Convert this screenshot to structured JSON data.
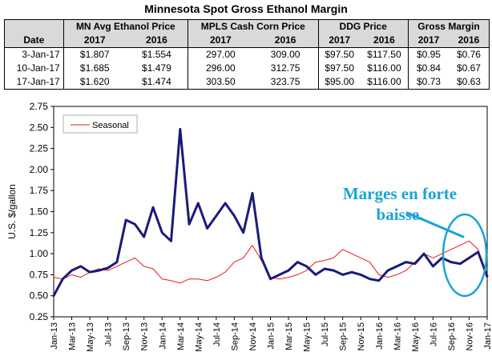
{
  "title": "Minnesota Spot Gross Ethanol Margin",
  "table": {
    "date_header": "Date",
    "groups": [
      {
        "label": "MN Avg Ethanol Price",
        "col2017": "2017",
        "col2016": "2016"
      },
      {
        "label": "MPLS Cash Corn Price",
        "col2017": "2017",
        "col2016": "2016"
      },
      {
        "label": "DDG Price",
        "col2017": "2017",
        "col2016": "2016"
      },
      {
        "label": "Gross Margin",
        "col2017": "2017",
        "col2016": "2016"
      }
    ],
    "rows": [
      {
        "date": "3-Jan-17",
        "values": [
          "$1.807",
          "$1.554",
          "297.00",
          "309.00",
          "$97.50",
          "$117.50",
          "$0.95",
          "$0.76"
        ]
      },
      {
        "date": "10-Jan-17",
        "values": [
          "$1.685",
          "$1.479",
          "296.00",
          "312.75",
          "$97.50",
          "$116.00",
          "$0.84",
          "$0.67"
        ]
      },
      {
        "date": "17-Jan-17",
        "values": [
          "$1.620",
          "$1.474",
          "303.50",
          "323.75",
          "$95.00",
          "$116.00",
          "$0.73",
          "$0.63"
        ]
      }
    ]
  },
  "annotation": {
    "line1": "Marges en forte",
    "line2": "baisse.",
    "color": "#1aa3d6"
  },
  "chart_data": {
    "type": "line",
    "ylabel": "U.S. $/gallon",
    "xlabel": "",
    "ylim": [
      0.25,
      2.75
    ],
    "yticks": [
      "0.25",
      "0.50",
      "0.75",
      "1.00",
      "1.25",
      "1.50",
      "1.75",
      "2.00",
      "2.25",
      "2.50",
      "2.75"
    ],
    "grid": false,
    "legend_position": "top-left",
    "x_tick_labels": [
      "Jan-13",
      "Mar-13",
      "May-13",
      "Jul-13",
      "Sep-13",
      "Nov-13",
      "Jan-14",
      "Mar-14",
      "May-14",
      "Jul-14",
      "Sep-14",
      "Nov-14",
      "Jan-15",
      "Mar-15",
      "May-15",
      "Jul-15",
      "Sep-15",
      "Nov-15",
      "Jan-16",
      "Mar-16",
      "May-16",
      "Jul-16",
      "Sep-16",
      "Nov-16",
      "Jan-17"
    ],
    "series": [
      {
        "name": "",
        "color": "#1a1a7a",
        "x": [
          "2013-01",
          "2013-02",
          "2013-03",
          "2013-04",
          "2013-05",
          "2013-06",
          "2013-07",
          "2013-08",
          "2013-09",
          "2013-10",
          "2013-11",
          "2013-12",
          "2014-01",
          "2014-02",
          "2014-03",
          "2014-04",
          "2014-05",
          "2014-06",
          "2014-07",
          "2014-08",
          "2014-09",
          "2014-10",
          "2014-11",
          "2014-12",
          "2015-01",
          "2015-02",
          "2015-03",
          "2015-04",
          "2015-05",
          "2015-06",
          "2015-07",
          "2015-08",
          "2015-09",
          "2015-10",
          "2015-11",
          "2015-12",
          "2016-01",
          "2016-02",
          "2016-03",
          "2016-04",
          "2016-05",
          "2016-06",
          "2016-07",
          "2016-08",
          "2016-09",
          "2016-10",
          "2016-11",
          "2016-12",
          "2017-01"
        ],
        "values": [
          0.5,
          0.7,
          0.8,
          0.85,
          0.78,
          0.8,
          0.83,
          0.9,
          1.4,
          1.35,
          1.2,
          1.55,
          1.25,
          1.15,
          2.48,
          1.35,
          1.6,
          1.3,
          1.45,
          1.6,
          1.45,
          1.25,
          1.72,
          0.95,
          0.7,
          0.75,
          0.8,
          0.9,
          0.85,
          0.75,
          0.82,
          0.8,
          0.75,
          0.78,
          0.75,
          0.7,
          0.68,
          0.8,
          0.85,
          0.9,
          0.88,
          1.0,
          0.85,
          0.95,
          0.9,
          0.88,
          0.95,
          1.02,
          0.73
        ]
      },
      {
        "name": "Seasonal",
        "color": "#e41a1c",
        "x": [
          "2013-01",
          "2013-02",
          "2013-03",
          "2013-04",
          "2013-05",
          "2013-06",
          "2013-07",
          "2013-08",
          "2013-09",
          "2013-10",
          "2013-11",
          "2013-12",
          "2014-01",
          "2014-02",
          "2014-03",
          "2014-04",
          "2014-05",
          "2014-06",
          "2014-07",
          "2014-08",
          "2014-09",
          "2014-10",
          "2014-11",
          "2014-12",
          "2015-01",
          "2015-02",
          "2015-03",
          "2015-04",
          "2015-05",
          "2015-06",
          "2015-07",
          "2015-08",
          "2015-09",
          "2015-10",
          "2015-11",
          "2015-12",
          "2016-01",
          "2016-02",
          "2016-03",
          "2016-04",
          "2016-05",
          "2016-06",
          "2016-07",
          "2016-08",
          "2016-09",
          "2016-10",
          "2016-11",
          "2016-12",
          "2017-01"
        ],
        "values": [
          0.72,
          0.7,
          0.75,
          0.72,
          0.78,
          0.82,
          0.8,
          0.85,
          0.9,
          0.95,
          0.85,
          0.82,
          0.7,
          0.68,
          0.65,
          0.7,
          0.7,
          0.68,
          0.72,
          0.78,
          0.9,
          0.95,
          1.1,
          0.92,
          0.72,
          0.7,
          0.72,
          0.75,
          0.8,
          0.9,
          0.92,
          0.95,
          1.05,
          1.0,
          0.95,
          0.9,
          0.75,
          0.72,
          0.75,
          0.8,
          0.9,
          1.0,
          0.95,
          1.0,
          1.05,
          1.1,
          1.15,
          1.05,
          0.7
        ]
      }
    ]
  }
}
